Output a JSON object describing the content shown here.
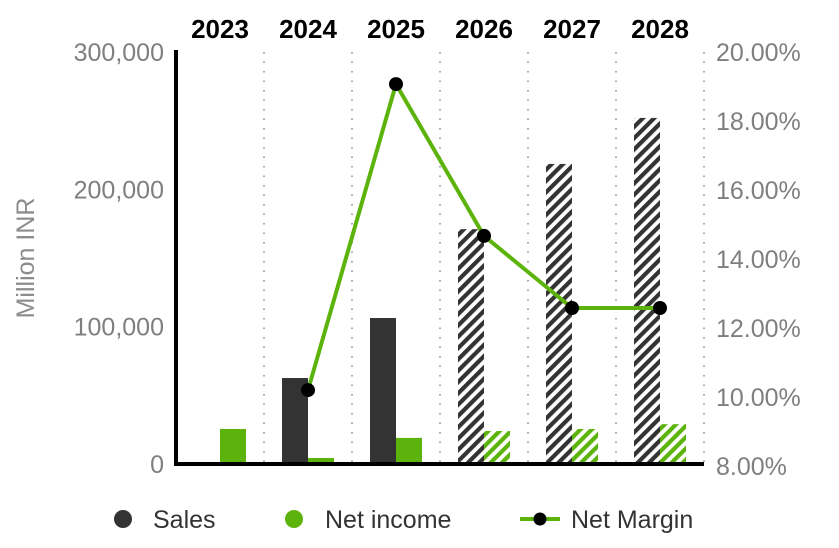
{
  "chart_data": {
    "type": "bar",
    "title": "",
    "categories": [
      "2023",
      "2024",
      "2025",
      "2026",
      "2027",
      "2028"
    ],
    "estimated_from_index": 3,
    "series": [
      {
        "name": "Sales",
        "type": "bar",
        "axis": "left",
        "color": "#333333",
        "values": [
          null,
          62600,
          106300,
          171000,
          218500,
          252000
        ]
      },
      {
        "name": "Net income",
        "type": "bar",
        "axis": "left",
        "color": "#5cb30b",
        "values": [
          25500,
          4400,
          19000,
          24000,
          25500,
          29000
        ]
      },
      {
        "name": "Net Margin",
        "type": "line",
        "axis": "right",
        "color": "#5cb30b",
        "marker_color": "#000000",
        "values": [
          null,
          10.2,
          19.07,
          14.67,
          12.58,
          12.58
        ]
      }
    ],
    "xlabel": "",
    "ylabel": "Million INR",
    "ylim": [
      0,
      300000
    ],
    "y_ticks": [
      "0",
      "100,000",
      "200,000",
      "300,000"
    ],
    "y2lim": [
      8,
      20
    ],
    "y2_ticks": [
      "8.00%",
      "10.00%",
      "12.00%",
      "14.00%",
      "16.00%",
      "18.00%",
      "20.00%"
    ],
    "legend_position": "bottom",
    "grid": "vertical dotted separators"
  },
  "axis": {
    "left_title": "Million INR",
    "left_ticks": [
      {
        "label": "300,000",
        "value": 300000
      },
      {
        "label": "200,000",
        "value": 200000
      },
      {
        "label": "100,000",
        "value": 100000
      },
      {
        "label": "0",
        "value": 0
      }
    ],
    "right_ticks": [
      {
        "label": "20.00%",
        "value": 20
      },
      {
        "label": "18.00%",
        "value": 18
      },
      {
        "label": "16.00%",
        "value": 16
      },
      {
        "label": "14.00%",
        "value": 14
      },
      {
        "label": "12.00%",
        "value": 12
      },
      {
        "label": "10.00%",
        "value": 10
      },
      {
        "label": "8.00%",
        "value": 8
      }
    ]
  },
  "legend": {
    "items": [
      {
        "label": "Sales",
        "color": "#333333"
      },
      {
        "label": "Net income",
        "color": "#5cb30b"
      },
      {
        "label": "Net Margin",
        "color": "#5cb30b"
      }
    ]
  }
}
